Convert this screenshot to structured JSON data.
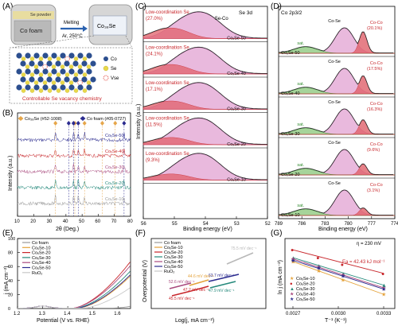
{
  "figure": {
    "panel_labels": [
      "(A)",
      "(B)",
      "(C)",
      "(D)",
      "(E)",
      "(F)",
      "(G)"
    ]
  },
  "panel_a": {
    "se_powder": "Se powder",
    "co_foam": "Co foam",
    "process_top": "Melting",
    "process_bottom": "Ar, 250°C",
    "product": "Co₃₈Se",
    "legend": [
      {
        "label": "Co",
        "color": "#2c4f8f"
      },
      {
        "label": "Se",
        "color": "#e8d84a"
      },
      {
        "label": "Vse",
        "color": "#e0433a"
      }
    ],
    "caption": "Controllable Se vacancy chemistry"
  },
  "chart_data": [
    {
      "panel": "B",
      "type": "line",
      "xlabel": "2θ (Deg.)",
      "ylabel": "Intensity (a.u.)",
      "xlim": [
        10,
        80
      ],
      "xticks": [
        "10",
        "20",
        "30",
        "40",
        "50",
        "60",
        "70",
        "80"
      ],
      "legend": [
        {
          "label": "Co₃₈Se (#52-1008)",
          "color": "#e6a64a"
        },
        {
          "label": "Co foam (#05-0727)",
          "color": "#2b2b8f"
        }
      ],
      "reference_peaks_cose": [
        33.5,
        45.5,
        51.5,
        62.5,
        70.5
      ],
      "reference_peaks_co": [
        41.7,
        44.7,
        47.6,
        76.0
      ],
      "series": [
        {
          "name": "CoₓSe-50",
          "color": "#2b2b8f"
        },
        {
          "name": "CoₓSe-40",
          "color": "#c8262b"
        },
        {
          "name": "CoₓSe-30",
          "color": "#a94a7e"
        },
        {
          "name": "CoₓSe-20",
          "color": "#24897b"
        },
        {
          "name": "CoₓSe-10",
          "color": "#9a9a9a"
        }
      ]
    },
    {
      "panel": "C",
      "type": "area",
      "title": "Se 3d",
      "xlabel": "Binding energy (eV)",
      "ylabel": "Intensity (a.u.)",
      "xlim": [
        56,
        52
      ],
      "xticks": [
        "56",
        "55",
        "54",
        "53",
        "52"
      ],
      "component_labels": [
        "Low-coordination Se",
        "Se-Co"
      ],
      "rows": [
        {
          "sample": "CoₓSe-50",
          "low_coord_pct": "(27.0%)"
        },
        {
          "sample": "CoₓSe-40",
          "low_coord_pct": "(24.1%)"
        },
        {
          "sample": "CoₓSe-30",
          "low_coord_pct": "(17.1%)"
        },
        {
          "sample": "CoₓSe-20",
          "low_coord_pct": "(11.5%)"
        },
        {
          "sample": "CoₓSe-10",
          "low_coord_pct": "(9.3%)"
        },
        {
          "sample": "CoₓSe-10",
          "low_coord_pct": ""
        }
      ]
    },
    {
      "panel": "D",
      "type": "area",
      "title": "Co 2p3/2",
      "xlabel": "Binding energy (eV)",
      "xlim": [
        789,
        774
      ],
      "xticks": [
        "789",
        "786",
        "783",
        "780",
        "777",
        "774"
      ],
      "component_labels": [
        "Co-Se",
        "Co-Co",
        "sat."
      ],
      "rows": [
        {
          "sample": "CoₓSe-50",
          "co_co_pct": "(20.1%)"
        },
        {
          "sample": "CoₓSe-40",
          "co_co_pct": "(17.5%)"
        },
        {
          "sample": "CoₓSe-30",
          "co_co_pct": "(16.3%)"
        },
        {
          "sample": "CoₓSe-20",
          "co_co_pct": "(9.6%)"
        },
        {
          "sample": "CoₓSe-10",
          "co_co_pct": "(3.1%)"
        }
      ]
    },
    {
      "panel": "E",
      "type": "line",
      "xlabel": "Potential (V vs. RHE)",
      "ylabel": "j (mA cm⁻²)",
      "xlim": [
        1.2,
        1.65
      ],
      "ylim": [
        0,
        100
      ],
      "xticks": [
        1.2,
        1.3,
        1.4,
        1.5,
        1.6
      ],
      "yticks": [
        0,
        20,
        40,
        60,
        80,
        100
      ],
      "series": [
        {
          "name": "Co foam",
          "color": "#9a9a9a",
          "onset": 1.58,
          "k": 180
        },
        {
          "name": "CoₓSe-10",
          "color": "#e4a23a",
          "onset": 1.44,
          "k": 560
        },
        {
          "name": "CoₓSe-20",
          "color": "#c8262b",
          "onset": 1.42,
          "k": 700
        },
        {
          "name": "CoₓSe-30",
          "color": "#24897b",
          "onset": 1.43,
          "k": 600
        },
        {
          "name": "CoₓSe-40",
          "color": "#a94a7e",
          "onset": 1.42,
          "k": 640
        },
        {
          "name": "CoₓSe-50",
          "color": "#2b2b8f",
          "onset": 1.435,
          "k": 560
        },
        {
          "name": "RuO₂",
          "color": "#c8c8c8",
          "onset": 1.46,
          "k": 420
        }
      ]
    },
    {
      "panel": "F",
      "type": "line",
      "xlabel": "Log(j, mA cm⁻²)",
      "ylabel": "Overpotential (V)",
      "legend": [
        "Co foam",
        "CoₓSe-10",
        "CoₓSe-20",
        "CoₓSe-30",
        "CoₓSe-40",
        "CoₓSe-50",
        "RuO₂"
      ],
      "colors": [
        "#9a9a9a",
        "#e4a23a",
        "#c8262b",
        "#24897b",
        "#a94a7e",
        "#2b2b8f",
        "#c8c8c8"
      ],
      "tafel": [
        {
          "label": "75.5 mV dec⁻¹",
          "color": "#b8b8b8"
        },
        {
          "label": "63.7 mV dec⁻¹",
          "color": "#2b2b8f"
        },
        {
          "label": "44.6 mV dec⁻¹",
          "color": "#e4a23a"
        },
        {
          "label": "52.6 mV dec⁻¹",
          "color": "#a94a7e"
        },
        {
          "label": "47.2 mV dec⁻¹",
          "color": "#c8262b"
        },
        {
          "label": "47.9 mV dec⁻¹",
          "color": "#24897b"
        },
        {
          "label": "45.5 mV dec⁻¹",
          "color": "#c8262b"
        }
      ]
    },
    {
      "panel": "G",
      "type": "scatter",
      "title": "η = 230 mV",
      "annotation": "Ea = 42.43 kJ mol⁻¹",
      "xlabel": "T⁻¹ (K⁻¹)",
      "ylabel": "ln j (mA cm⁻²)",
      "xticks": [
        "0.0027",
        "0.0030",
        "0.0033"
      ],
      "x": [
        0.0027,
        0.00287,
        0.00303,
        0.0033
      ],
      "series": [
        {
          "name": "CoₓSe-10",
          "color": "#e4a23a",
          "values": [
            3.6,
            2.9,
            2.2,
            1.1
          ]
        },
        {
          "name": "CoₓSe-20",
          "color": "#c8262b",
          "values": [
            4.5,
            3.9,
            3.4,
            2.7
          ]
        },
        {
          "name": "CoₓSe-30",
          "color": "#24897b",
          "values": [
            3.9,
            3.3,
            2.7,
            1.8
          ]
        },
        {
          "name": "CoₓSe-40",
          "color": "#a94a7e",
          "values": [
            3.8,
            3.2,
            2.6,
            1.6
          ]
        },
        {
          "name": "CoₓSe-50",
          "color": "#2b2b8f",
          "values": [
            3.7,
            3.1,
            2.5,
            1.5
          ]
        }
      ]
    }
  ]
}
